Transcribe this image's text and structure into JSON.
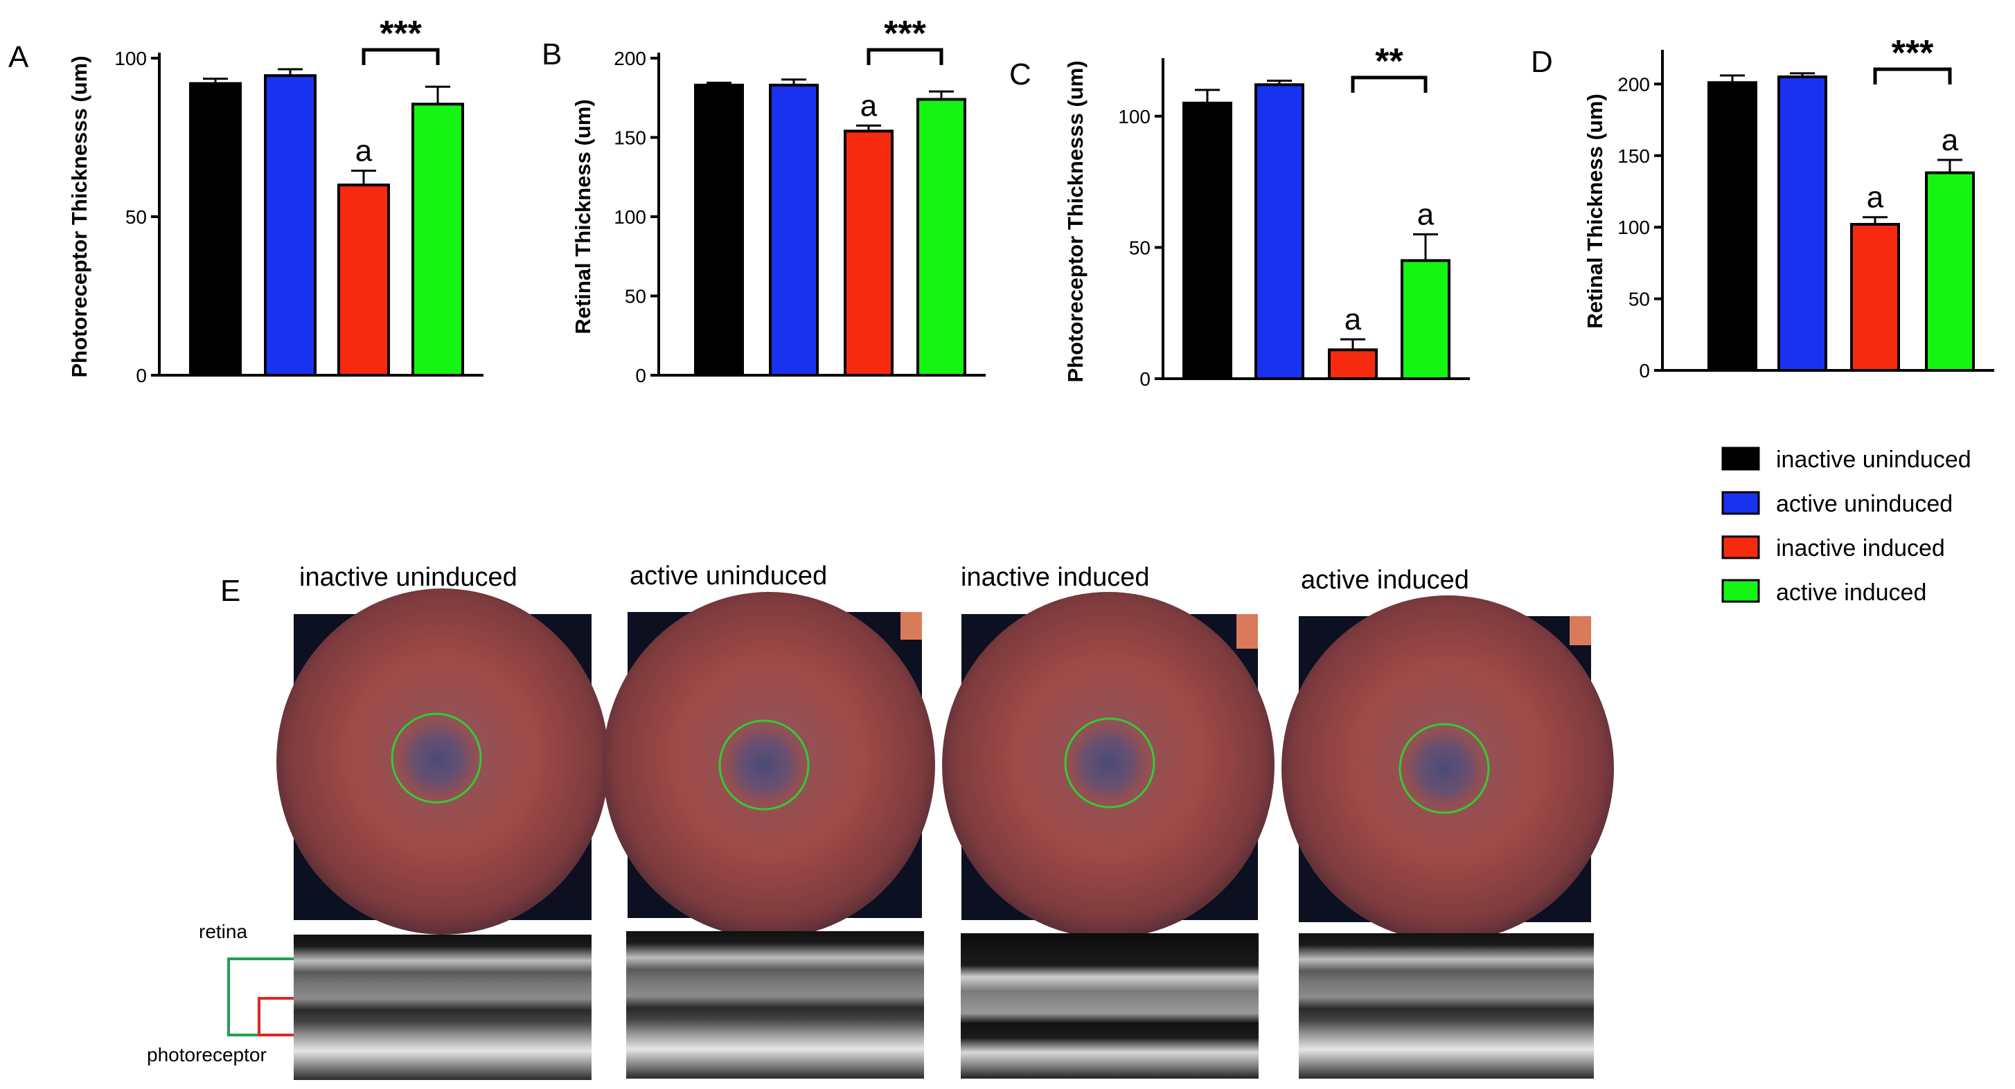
{
  "panel_letters": [
    "A",
    "B",
    "C",
    "D",
    "E"
  ],
  "colors": {
    "inactive_uninduced": "#000000",
    "active_uninduced": "#1932f0",
    "inactive_induced": "#f52a0f",
    "active_induced": "#14f514",
    "retina_marker": "#22a050",
    "photoreceptor_marker": "#e0281e",
    "title_active_uninduced": "#1e73be",
    "title_inactive_induced": "#e0281e",
    "title_active_induced": "#26b24a"
  },
  "legend": {
    "items": [
      {
        "label": "inactive uninduced",
        "color": "#000000"
      },
      {
        "label": "active uninduced",
        "color": "#1932f0"
      },
      {
        "label": "inactive induced",
        "color": "#f52a0f"
      },
      {
        "label": "active induced",
        "color": "#14f514"
      }
    ]
  },
  "chart_data": [
    {
      "panel": "A",
      "type": "bar",
      "ylabel": "Photoreceptor Thicknesss (um)",
      "categories": [
        "inactive uninduced",
        "active uninduced",
        "inactive induced",
        "active induced"
      ],
      "values": [
        92,
        94.5,
        60,
        85.5
      ],
      "errors": [
        1.5,
        2,
        4.5,
        5.5
      ],
      "ylim": [
        0,
        100
      ],
      "yticks": [
        0,
        50,
        100
      ],
      "markers": [
        "",
        "",
        "a",
        ""
      ],
      "significance": {
        "between": [
          2,
          3
        ],
        "label": "***"
      }
    },
    {
      "panel": "B",
      "type": "bar",
      "ylabel": "Retinal Thickness (um)",
      "categories": [
        "inactive uninduced",
        "active uninduced",
        "inactive induced",
        "active induced"
      ],
      "values": [
        183,
        183,
        154,
        174
      ],
      "errors": [
        1.5,
        3.5,
        3.5,
        5
      ],
      "ylim": [
        0,
        200
      ],
      "yticks": [
        0,
        50,
        100,
        150,
        200
      ],
      "markers": [
        "",
        "",
        "a",
        ""
      ],
      "significance": {
        "between": [
          2,
          3
        ],
        "label": "***"
      }
    },
    {
      "panel": "C",
      "type": "bar",
      "ylabel": "Photoreceptor Thicknesss (um)",
      "categories": [
        "inactive uninduced",
        "active uninduced",
        "inactive induced",
        "active induced"
      ],
      "values": [
        105,
        112,
        11,
        45
      ],
      "errors": [
        5,
        1.5,
        4,
        10
      ],
      "ylim": [
        0,
        120
      ],
      "yticks": [
        0,
        50,
        100
      ],
      "markers": [
        "",
        "",
        "a",
        "a"
      ],
      "significance": {
        "between": [
          2,
          3
        ],
        "label": "**"
      }
    },
    {
      "panel": "D",
      "type": "bar",
      "ylabel": "Retinal Thickness (um)",
      "categories": [
        "inactive uninduced",
        "active uninduced",
        "inactive induced",
        "active induced"
      ],
      "values": [
        201,
        205,
        102,
        138
      ],
      "errors": [
        5,
        2.5,
        5,
        9
      ],
      "ylim": [
        0,
        220
      ],
      "yticks": [
        0,
        50,
        100,
        150,
        200
      ],
      "markers": [
        "",
        "",
        "a",
        "a"
      ],
      "significance": {
        "between": [
          2,
          3
        ],
        "label": "***"
      }
    }
  ],
  "panel_e": {
    "titles": [
      {
        "text": "inactive uninduced",
        "color": "#000000"
      },
      {
        "text": "active uninduced",
        "color": "#1e73be"
      },
      {
        "text": "inactive induced",
        "color": "#e0281e"
      },
      {
        "text": "active induced",
        "color": "#26b24a"
      }
    ],
    "retina_label": "retina",
    "photoreceptor_label": "photoreceptor"
  }
}
